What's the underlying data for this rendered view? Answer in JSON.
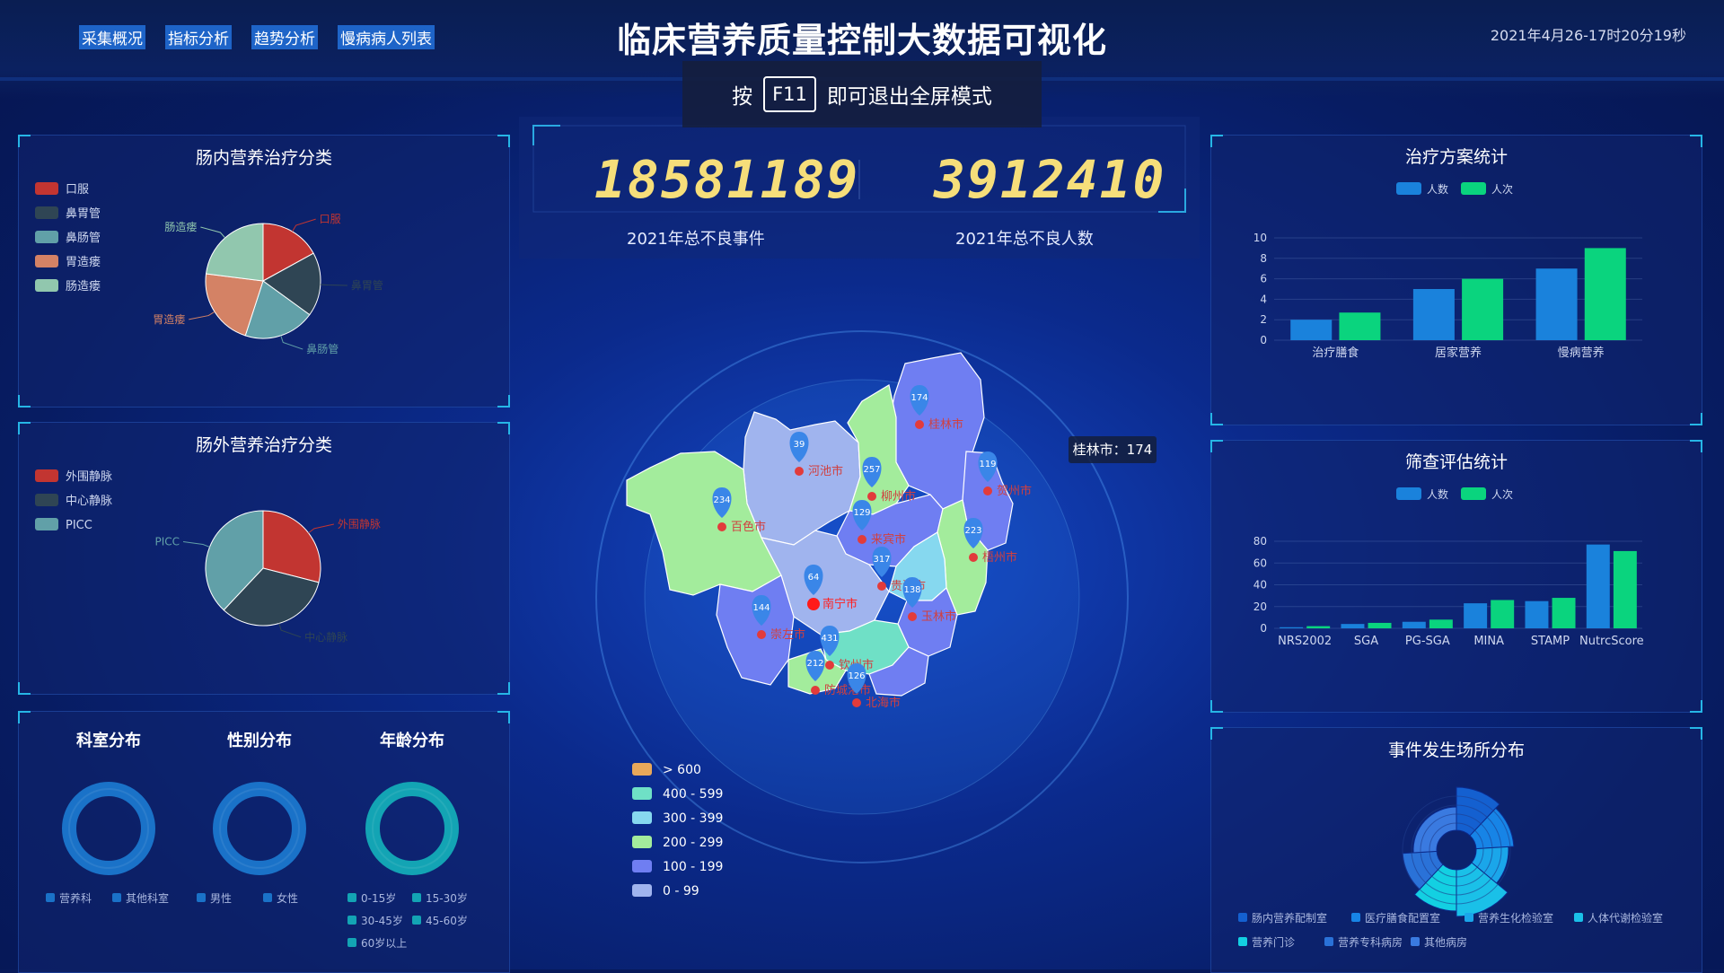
{
  "nav": [
    "采集概况",
    "指标分析",
    "趋势分析",
    "慢病病人列表"
  ],
  "title": "临床营养质量控制大数据可视化",
  "clock": "2021年4月26-17时20分19秒",
  "fullscreen": {
    "pre": "按",
    "key": "F11",
    "post": "即可退出全屏模式"
  },
  "stats": [
    {
      "value": "18581189",
      "label": "2021年总不良事件"
    },
    {
      "value": "3912410",
      "label": "2021年总不良人数"
    }
  ],
  "enteral": {
    "title": "肠内营养治疗分类",
    "legend": [
      "口服",
      "鼻胃管",
      "鼻肠管",
      "胃造瘘",
      "肠造瘘"
    ],
    "colors": [
      "#c23531",
      "#2f4554",
      "#61a0a8",
      "#d48265",
      "#91c7ae"
    ]
  },
  "parenteral": {
    "title": "肠外营养治疗分类",
    "legend": [
      "外围静脉",
      "中心静脉",
      "PICC"
    ],
    "colors": [
      "#c23531",
      "#2f4554",
      "#61a0a8"
    ]
  },
  "donuts": [
    {
      "title": "科室分布",
      "legend": [
        "营养科",
        "其他科室"
      ],
      "color": "#1a72c8"
    },
    {
      "title": "性别分布",
      "legend": [
        "男性",
        "女性"
      ],
      "color": "#1a72c8"
    },
    {
      "title": "年龄分布",
      "legend": [
        "0-15岁",
        "15-30岁",
        "30-45岁",
        "45-60岁",
        "60岁以上"
      ],
      "color": "#13a4b4"
    }
  ],
  "map": {
    "tooltip": "桂林市：174",
    "cities": [
      {
        "name": "桂林市",
        "value": 174
      },
      {
        "name": "河池市",
        "value": 39
      },
      {
        "name": "柳州市",
        "value": 257
      },
      {
        "name": "贺州市",
        "value": 119
      },
      {
        "name": "百色市",
        "value": 234
      },
      {
        "name": "来宾市",
        "value": 129
      },
      {
        "name": "梧州市",
        "value": 223
      },
      {
        "name": "贵港市",
        "value": 317
      },
      {
        "name": "南宁市",
        "value": 64
      },
      {
        "name": "玉林市",
        "value": 138
      },
      {
        "name": "崇左市",
        "value": 144
      },
      {
        "name": "钦州市",
        "value": 431
      },
      {
        "name": "防城港市",
        "value": 212
      },
      {
        "name": "北海市",
        "value": 126
      }
    ],
    "ranges": [
      {
        "label": "> 600",
        "color": "#e8a85a"
      },
      {
        "label": "400 - 599",
        "color": "#6fe0c6"
      },
      {
        "label": "300 - 399",
        "color": "#86d8ef"
      },
      {
        "label": "200 - 299",
        "color": "#a3ec9c"
      },
      {
        "label": "100 - 199",
        "color": "#6f7ef2"
      },
      {
        "label": "0 - 99",
        "color": "#a0b4ee"
      }
    ]
  },
  "chart_data": [
    {
      "type": "bar",
      "title": "治疗方案统计",
      "categories": [
        "治疗膳食",
        "居家营养",
        "慢病营养"
      ],
      "series": [
        {
          "name": "人数",
          "values": [
            2,
            5,
            7
          ]
        },
        {
          "name": "人次",
          "values": [
            2.7,
            6,
            9
          ]
        }
      ],
      "ylim": [
        0,
        10
      ],
      "yticks": [
        0,
        2,
        4,
        6,
        8,
        10
      ],
      "colors": [
        "#1a82dc",
        "#0ad47e"
      ]
    },
    {
      "type": "bar",
      "title": "筛查评估统计",
      "categories": [
        "NRS2002",
        "SGA",
        "PG-SGA",
        "MINA",
        "STAMP",
        "NutrcScore"
      ],
      "series": [
        {
          "name": "人数",
          "values": [
            1,
            4,
            6,
            23,
            25,
            77
          ]
        },
        {
          "name": "人次",
          "values": [
            2,
            5,
            8,
            26,
            28,
            71
          ]
        }
      ],
      "ylim": [
        0,
        80
      ],
      "yticks": [
        0,
        20,
        40,
        60,
        80
      ],
      "colors": [
        "#1a82dc",
        "#0ad47e"
      ]
    }
  ],
  "venue": {
    "title": "事件发生场所分布",
    "legend": [
      "肠内营养配制室",
      "医疗膳食配置室",
      "营养生化检验室",
      "人体代谢检验室",
      "营养门诊",
      "营养专科病房",
      "其他病房"
    ],
    "colors": [
      "#1460d0",
      "#1784e6",
      "#1aa6ea",
      "#1ac0e8",
      "#13d0e2",
      "#2a72d8",
      "#3a7ae0"
    ]
  }
}
